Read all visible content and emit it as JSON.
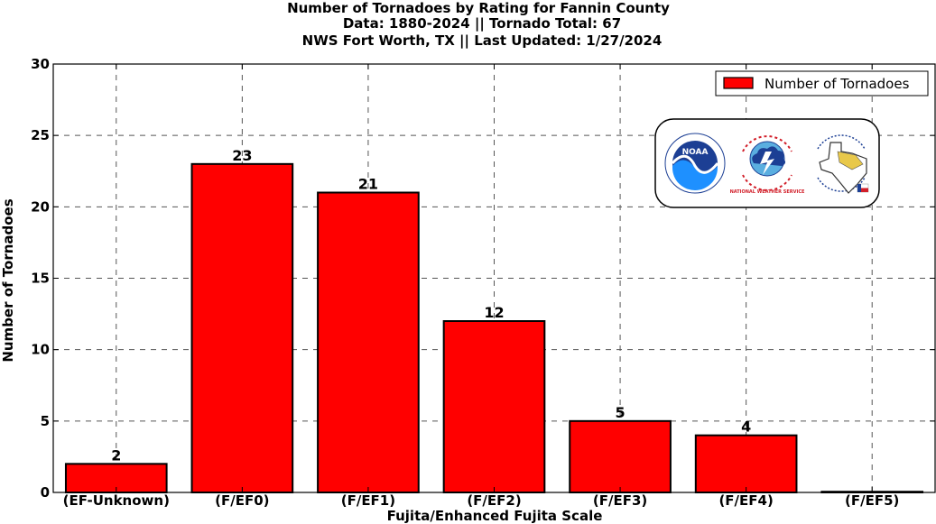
{
  "title": {
    "line1": "Number of Tornadoes by Rating for Fannin County",
    "line2": "Data: 1880-2024 || Tornado Total: 67",
    "line3": "NWS Fort Worth, TX || Last Updated: 1/27/2024"
  },
  "logos": {
    "noaa_text": "NOAA",
    "nws_text": "NATIONAL WEATHER SERVICE"
  },
  "chart_data": {
    "type": "bar",
    "categories": [
      "(EF-Unknown)",
      "(F/EF0)",
      "(F/EF1)",
      "(F/EF2)",
      "(F/EF3)",
      "(F/EF4)",
      "(F/EF5)"
    ],
    "series": [
      {
        "name": "Number of Tornadoes",
        "values": [
          2,
          23,
          21,
          12,
          5,
          4,
          0
        ],
        "color": "#ff0000"
      }
    ],
    "data_labels": [
      "2",
      "23",
      "21",
      "12",
      "5",
      "4",
      ""
    ],
    "xlabel": "Fujita/Enhanced Fujita Scale",
    "ylabel": "Number of Tornadoes",
    "ylim": [
      0,
      30
    ],
    "yticks": [
      0,
      5,
      10,
      15,
      20,
      25,
      30
    ],
    "grid": true,
    "legend_position": "top-right"
  }
}
